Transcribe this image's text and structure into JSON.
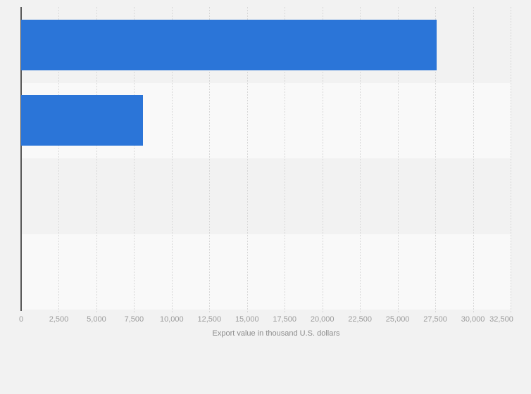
{
  "page": {
    "background": "#f2f2f2"
  },
  "chart_data": {
    "type": "bar",
    "orientation": "horizontal",
    "title": "",
    "categories": [
      "",
      "",
      "",
      ""
    ],
    "values": [
      27600,
      8100,
      null,
      null
    ],
    "xlabel": "Export value in thousand U.S. dollars",
    "xlim": [
      0,
      32500
    ],
    "xtick_interval": 2500,
    "xticks": [
      0,
      2500,
      5000,
      7500,
      10000,
      12500,
      15000,
      17500,
      20000,
      22500,
      25000,
      27500,
      30000,
      32500
    ],
    "xtick_labels": [
      "0",
      "2,500",
      "5,000",
      "7,500",
      "10,000",
      "12,500",
      "15,000",
      "17,500",
      "20,000",
      "22,500",
      "25,000",
      "27,500",
      "30,000",
      "32,500"
    ],
    "grid": true,
    "gridline_style": "dotted",
    "legend": false,
    "ylabels_visible": false,
    "colors": {
      "bar": "#2b75d8",
      "band_dark": "#f2f2f2",
      "band_light": "#f9f9f9",
      "gridline": "#d7d7d7",
      "axis_line": "#575757",
      "tick_label": "#9b9b9b",
      "axis_title": "#8c8c8c"
    }
  }
}
